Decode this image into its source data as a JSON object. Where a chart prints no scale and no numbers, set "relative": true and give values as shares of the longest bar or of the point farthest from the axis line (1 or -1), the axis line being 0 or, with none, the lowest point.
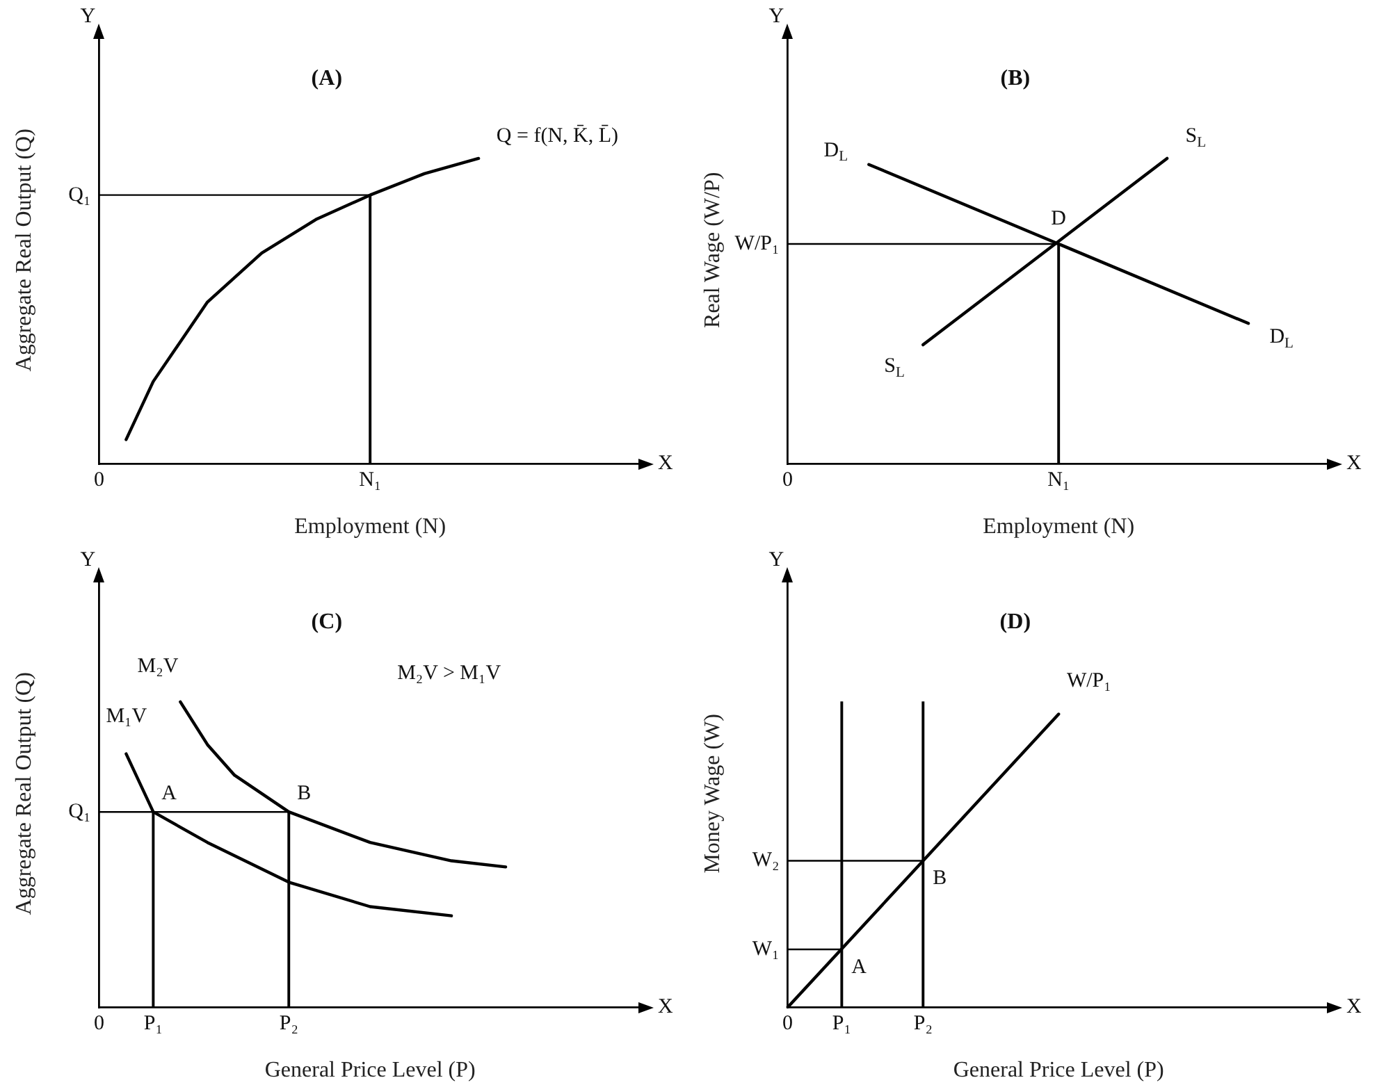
{
  "chart_data": [
    {
      "type": "line",
      "title": "(A)",
      "relative": true,
      "xlabel": "Employment (N)",
      "ylabel": "Aggregate Real Output (Q)",
      "categories": [
        "0",
        null,
        null,
        null,
        null,
        null,
        null,
        null,
        null,
        null,
        "N₁",
        null,
        null,
        null,
        null,
        null,
        null,
        null,
        null,
        null,
        null
      ],
      "series": [
        {
          "name": "Q = f(N, K̄, L̄)",
          "color": "#000000",
          "values": [
            null,
            0.08,
            0.27,
            null,
            0.53,
            null,
            0.69,
            null,
            0.8,
            null,
            0.88,
            null,
            0.95,
            null,
            1,
            null,
            null,
            null,
            null,
            null,
            null
          ]
        },
        {
          "color": "#000000",
          "values": [
            0.88,
            null,
            null,
            null,
            null,
            null,
            null,
            null,
            null,
            null,
            0.88,
            null,
            null,
            null,
            null,
            null,
            null,
            null,
            null,
            null,
            null
          ]
        },
        {
          "type": "bar",
          "color": "#000000",
          "values": [
            null,
            null,
            null,
            null,
            null,
            null,
            null,
            null,
            null,
            null,
            0.88,
            null,
            null,
            null,
            null,
            null,
            null,
            null,
            null,
            null,
            null
          ]
        }
      ],
      "annotations": [
        "Y",
        "X",
        {
          "text": "Q₁",
          "x": "0",
          "y": 0.88
        }
      ]
    },
    {
      "type": "line",
      "title": "(B)",
      "relative": true,
      "xlabel": "Employment (N)",
      "ylabel": "Real Wage (W/P)",
      "categories": [
        "0",
        null,
        null,
        null,
        null,
        null,
        null,
        null,
        null,
        null,
        "N₁",
        null,
        null,
        null,
        null,
        null,
        null,
        null,
        null,
        null,
        null
      ],
      "series": [
        {
          "name": "D$_{L}$",
          "color": "#000000",
          "values": [
            null,
            null,
            null,
            0.98,
            null,
            null,
            null,
            null,
            null,
            null,
            null,
            null,
            null,
            null,
            null,
            null,
            null,
            0.46,
            null,
            null,
            null
          ]
        },
        {
          "name": "S$_{L}$",
          "color": "#000000",
          "values": [
            null,
            null,
            null,
            null,
            null,
            0.39,
            null,
            null,
            null,
            null,
            null,
            null,
            null,
            null,
            1,
            null,
            null,
            null,
            null,
            null,
            null
          ]
        },
        {
          "color": "#000000",
          "values": [
            0.72,
            null,
            null,
            null,
            null,
            null,
            null,
            null,
            null,
            null,
            0.72,
            null,
            null,
            null,
            null,
            null,
            null,
            null,
            null,
            null,
            null
          ]
        },
        {
          "type": "bar",
          "color": "#000000",
          "values": [
            null,
            null,
            null,
            null,
            null,
            null,
            null,
            null,
            null,
            null,
            0.72,
            null,
            null,
            null,
            null,
            null,
            null,
            null,
            null,
            null,
            null
          ]
        }
      ],
      "annotations": [
        "Y",
        "X",
        {
          "text": "W/P₁",
          "x": "0",
          "y": 0.72
        },
        {
          "text": "D",
          "x": "N₁",
          "y": 0.72
        }
      ]
    },
    {
      "type": "line",
      "title": "(C)",
      "relative": true,
      "xlabel": "General Price Level (P)",
      "ylabel": "Aggregate Real Output (Q)",
      "categories": [
        "0",
        null,
        "P₁",
        null,
        null,
        null,
        null,
        "P₂",
        null,
        null,
        null,
        null,
        null,
        null,
        null,
        null,
        null,
        null,
        null,
        null,
        null
      ],
      "series": [
        {
          "name": "M₁V",
          "color": "#000000",
          "values": [
            null,
            0.83,
            0.64,
            null,
            0.54,
            null,
            null,
            0.41,
            null,
            null,
            0.33,
            null,
            null,
            0.3,
            null,
            null,
            null,
            null,
            null,
            null,
            null
          ]
        },
        {
          "name": "M₂V",
          "color": "#000000",
          "values": [
            null,
            null,
            null,
            1,
            0.86,
            0.76,
            null,
            0.64,
            null,
            null,
            0.54,
            null,
            null,
            0.48,
            null,
            0.46,
            null,
            null,
            null,
            null,
            null
          ]
        },
        {
          "color": "#000000",
          "values": [
            0.64,
            null,
            null,
            null,
            null,
            null,
            null,
            0.64,
            null,
            null,
            null,
            null,
            null,
            null,
            null,
            null,
            null,
            null,
            null,
            null,
            null
          ]
        },
        {
          "type": "bar",
          "color": "#000000",
          "values": [
            null,
            null,
            0.64,
            null,
            null,
            null,
            null,
            0.64,
            null,
            null,
            null,
            null,
            null,
            null,
            null,
            null,
            null,
            null,
            null,
            null,
            null
          ]
        }
      ],
      "annotations": [
        "Y",
        "X",
        "M₂V > M₁V",
        {
          "text": "Q₁",
          "x": "0",
          "y": 0.64
        },
        {
          "text": "A",
          "x": "P₁",
          "y": 0.64
        },
        {
          "text": "B",
          "x": "P₂",
          "y": 0.64
        }
      ]
    },
    {
      "type": "line",
      "title": "(D)",
      "relative": true,
      "xlabel": "General Price Level (P)",
      "ylabel": "Money Wage (W)",
      "categories": [
        "0",
        null,
        "P₁",
        null,
        null,
        "P₂",
        null,
        null,
        null,
        null,
        null,
        null,
        null,
        null,
        null,
        null,
        null,
        null,
        null,
        null,
        null
      ],
      "series": [
        {
          "name": "W/P₁",
          "color": "#000000",
          "values": [
            0,
            null,
            null,
            null,
            null,
            null,
            null,
            null,
            null,
            null,
            0.96,
            null,
            null,
            null,
            null,
            null,
            null,
            null,
            null,
            null,
            null
          ]
        },
        {
          "color": "#000000",
          "values": [
            0.19,
            null,
            0.19,
            null,
            null,
            null,
            null,
            null,
            null,
            null,
            null,
            null,
            null,
            null,
            null,
            null,
            null,
            null,
            null,
            null,
            null
          ]
        },
        {
          "color": "#000000",
          "values": [
            0.48,
            null,
            null,
            null,
            null,
            0.48,
            null,
            null,
            null,
            null,
            null,
            null,
            null,
            null,
            null,
            null,
            null,
            null,
            null,
            null,
            null
          ]
        },
        {
          "type": "bar",
          "color": "#000000",
          "values": [
            null,
            null,
            1,
            null,
            null,
            1,
            null,
            null,
            null,
            null,
            null,
            null,
            null,
            null,
            null,
            null,
            null,
            null,
            null,
            null,
            null
          ]
        }
      ],
      "annotations": [
        "Y",
        "X",
        {
          "text": "W₁",
          "x": "0",
          "y": 0.19
        },
        {
          "text": "W₂",
          "x": "0",
          "y": 0.48
        },
        {
          "text": "A",
          "x": "P₁",
          "y": 0.19
        },
        {
          "text": "B",
          "x": "P₂",
          "y": 0.48
        }
      ]
    }
  ]
}
